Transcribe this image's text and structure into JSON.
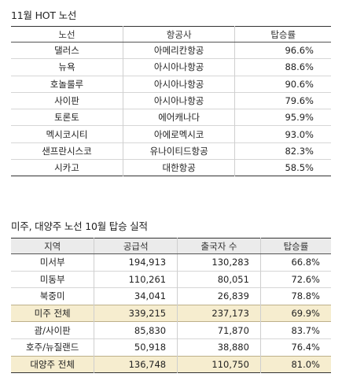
{
  "hot_routes": {
    "title": "11월 HOT 노선",
    "headers": [
      "노선",
      "항공사",
      "탑승률"
    ],
    "rows": [
      {
        "route": "댈러스",
        "airline": "아메리칸항공",
        "load_factor": "96.6%"
      },
      {
        "route": "뉴욕",
        "airline": "아시아나항공",
        "load_factor": "88.6%"
      },
      {
        "route": "호놀룰루",
        "airline": "아시아나항공",
        "load_factor": "90.6%"
      },
      {
        "route": "사이판",
        "airline": "아시아나항공",
        "load_factor": "79.6%"
      },
      {
        "route": "토론토",
        "airline": "에어캐나다",
        "load_factor": "95.9%"
      },
      {
        "route": "멕시코시티",
        "airline": "아에로멕시코",
        "load_factor": "93.0%"
      },
      {
        "route": "샌프란시스코",
        "airline": "유나이티드항공",
        "load_factor": "82.3%"
      },
      {
        "route": "시카고",
        "airline": "대한항공",
        "load_factor": "58.5%"
      }
    ]
  },
  "region_stats": {
    "title": "미주, 대양주 노선 10월 탑승 실적",
    "headers": [
      "지역",
      "공급석",
      "출국자 수",
      "탑승률"
    ],
    "rows": [
      {
        "region": "미서부",
        "seats": "194,913",
        "passengers": "130,283",
        "load_factor": "66.8%",
        "total": false
      },
      {
        "region": "미동부",
        "seats": "110,261",
        "passengers": "80,051",
        "load_factor": "72.6%",
        "total": false
      },
      {
        "region": "북중미",
        "seats": "34,041",
        "passengers": "26,839",
        "load_factor": "78.8%",
        "total": false
      },
      {
        "region": "미주 전체",
        "seats": "339,215",
        "passengers": "237,173",
        "load_factor": "69.9%",
        "total": true
      },
      {
        "region": "괌/사이판",
        "seats": "85,830",
        "passengers": "71,870",
        "load_factor": "83.7%",
        "total": false
      },
      {
        "region": "호주/뉴질랜드",
        "seats": "50,918",
        "passengers": "38,880",
        "load_factor": "76.4%",
        "total": false
      },
      {
        "region": "대양주 전체",
        "seats": "136,748",
        "passengers": "110,750",
        "load_factor": "81.0%",
        "total": true
      }
    ]
  },
  "colors": {
    "total_row_bg": "#f6edcf",
    "header_bg": "#ebebeb"
  }
}
